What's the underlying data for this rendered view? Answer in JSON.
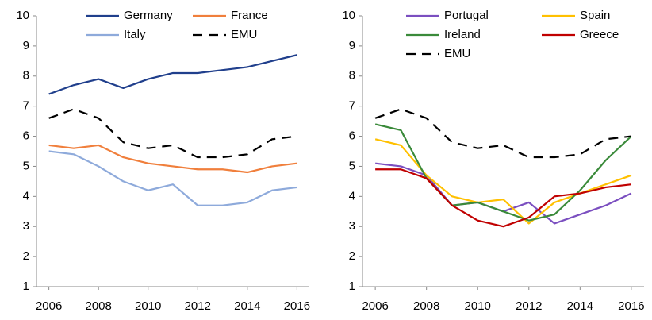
{
  "chart_data": [
    {
      "type": "line",
      "x": [
        2006,
        2007,
        2008,
        2009,
        2010,
        2011,
        2012,
        2013,
        2014,
        2015,
        2016
      ],
      "series": [
        {
          "name": "Germany",
          "color": "#203f8c",
          "values": [
            7.4,
            7.7,
            7.9,
            7.6,
            7.9,
            8.1,
            8.1,
            8.2,
            8.3,
            8.5,
            8.7
          ]
        },
        {
          "name": "France",
          "color": "#f07f3c",
          "values": [
            5.7,
            5.6,
            5.7,
            5.3,
            5.1,
            5.0,
            4.9,
            4.9,
            4.8,
            5.0,
            5.1
          ]
        },
        {
          "name": "Italy",
          "color": "#8eaadb",
          "values": [
            5.5,
            5.4,
            5.0,
            4.5,
            4.2,
            4.4,
            3.7,
            3.7,
            3.8,
            4.2,
            4.3
          ]
        },
        {
          "name": "EMU",
          "color": "#000000",
          "dashed": true,
          "values": [
            6.6,
            6.9,
            6.6,
            5.8,
            5.6,
            5.7,
            5.3,
            5.3,
            5.4,
            5.9,
            6.0
          ]
        }
      ],
      "xlim": [
        2005.5,
        2016.5
      ],
      "xticks": [
        2006,
        2008,
        2010,
        2012,
        2014,
        2016
      ],
      "ylim": [
        1,
        10
      ],
      "yticks": [
        1,
        2,
        3,
        4,
        5,
        6,
        7,
        8,
        9,
        10
      ],
      "grid": false
    },
    {
      "type": "line",
      "x": [
        2006,
        2007,
        2008,
        2009,
        2010,
        2011,
        2012,
        2013,
        2014,
        2015,
        2016
      ],
      "series": [
        {
          "name": "Portugal",
          "color": "#7b4fc0",
          "values": [
            5.1,
            5.0,
            4.7,
            3.7,
            3.8,
            3.5,
            3.8,
            3.1,
            3.4,
            3.7,
            4.1
          ]
        },
        {
          "name": "Spain",
          "color": "#ffc000",
          "values": [
            5.9,
            5.7,
            4.7,
            4.0,
            3.8,
            3.9,
            3.1,
            3.8,
            4.1,
            4.4,
            4.7
          ]
        },
        {
          "name": "Ireland",
          "color": "#3a8a3a",
          "values": [
            6.4,
            6.2,
            4.6,
            3.7,
            3.8,
            3.5,
            3.2,
            3.4,
            4.2,
            5.2,
            6.0
          ]
        },
        {
          "name": "Greece",
          "color": "#c00000",
          "values": [
            4.9,
            4.9,
            4.6,
            3.7,
            3.2,
            3.0,
            3.3,
            4.0,
            4.1,
            4.3,
            4.4
          ]
        },
        {
          "name": "EMU",
          "color": "#000000",
          "dashed": true,
          "values": [
            6.6,
            6.9,
            6.6,
            5.8,
            5.6,
            5.7,
            5.3,
            5.3,
            5.4,
            5.9,
            6.0
          ]
        }
      ],
      "xlim": [
        2005.5,
        2016.5
      ],
      "xticks": [
        2006,
        2008,
        2010,
        2012,
        2014,
        2016
      ],
      "ylim": [
        1,
        10
      ],
      "yticks": [
        1,
        2,
        3,
        4,
        5,
        6,
        7,
        8,
        9,
        10
      ],
      "grid": false
    }
  ]
}
